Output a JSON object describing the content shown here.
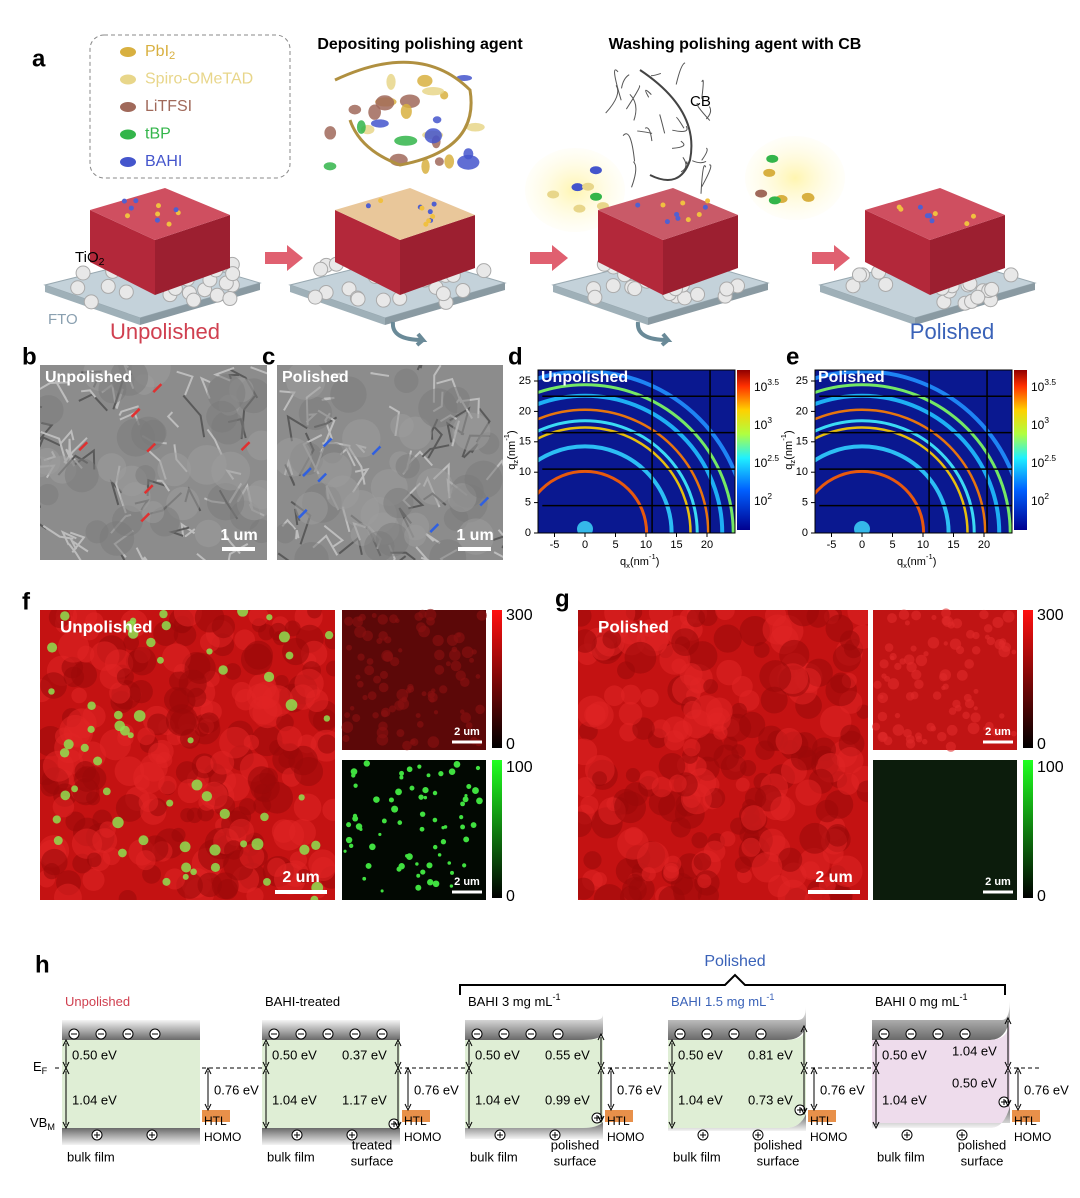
{
  "panel_a": {
    "label": "a",
    "legend": [
      {
        "text": "PbI",
        "sub": "2"
      },
      {
        "text": "Spiro-OMeTAD"
      },
      {
        "text": "LiTFSI"
      },
      {
        "text": "tBP"
      },
      {
        "text": "BAHI"
      }
    ],
    "step1": "Depositing polishing agent",
    "step2": "Washing polishing agent with CB",
    "cb": "CB",
    "tio2": {
      "main": "TiO",
      "sub": "2"
    },
    "fto": "FTO",
    "unpolished": "Unpolished",
    "polished": "Polished"
  },
  "panel_b": {
    "label": "b",
    "title": "Unpolished",
    "scale": "1 um"
  },
  "panel_c": {
    "label": "c",
    "title": "Polished",
    "scale": "1 um"
  },
  "panel_d": {
    "label": "d",
    "title": "Unpolished",
    "xlabel": [
      "q",
      "x",
      "(nm",
      "-1",
      ")"
    ],
    "ylabel": [
      "q",
      "z",
      "(nm",
      "-1",
      ")"
    ],
    "xticks": [
      "-5",
      "0",
      "5",
      "10",
      "15",
      "20"
    ],
    "yticks": [
      "0",
      "5",
      "10",
      "15",
      "20",
      "25"
    ],
    "colorbar": [
      {
        "base": "10",
        "exp": "3.5"
      },
      {
        "base": "10",
        "exp": "3"
      },
      {
        "base": "10",
        "exp": "2.5"
      },
      {
        "base": "10",
        "exp": "2"
      }
    ]
  },
  "panel_e": {
    "label": "e",
    "title": "Polished",
    "xlabel": [
      "q",
      "x",
      "(nm",
      "-1",
      ")"
    ],
    "ylabel": [
      "q",
      "z",
      "(nm",
      "-1",
      ")"
    ],
    "xticks": [
      "-5",
      "0",
      "5",
      "10",
      "15",
      "20"
    ],
    "yticks": [
      "0",
      "5",
      "10",
      "15",
      "20",
      "25"
    ],
    "colorbar": [
      {
        "base": "10",
        "exp": "3.5"
      },
      {
        "base": "10",
        "exp": "3"
      },
      {
        "base": "10",
        "exp": "2.5"
      },
      {
        "base": "10",
        "exp": "2"
      }
    ]
  },
  "panel_f": {
    "label": "f",
    "title": "Unpolished",
    "scale_main": "2 um",
    "scale_small1": "2 um",
    "scale_small2": "2 um",
    "cbar_red": [
      "300",
      "0"
    ],
    "cbar_green": [
      "100",
      "0"
    ]
  },
  "panel_g": {
    "label": "g",
    "title": "Polished",
    "scale_main": "2 um",
    "scale_small1": "2 um",
    "scale_small2": "2 um",
    "cbar_red": [
      "300",
      "0"
    ],
    "cbar_green": [
      "100",
      "0"
    ]
  },
  "panel_h": {
    "label": "h",
    "bracket": "Polished",
    "ef": [
      "E",
      "F"
    ],
    "vbm": [
      "VB",
      "M"
    ],
    "htl": [
      "HTL",
      "HOMO"
    ],
    "columns": [
      {
        "title": {
          "text": "Unpolished"
        },
        "bulk_top": "0.50 eV",
        "bulk_gap": "1.04 eV",
        "htl_gap": "0.76 eV",
        "bottom": [
          "bulk film"
        ]
      },
      {
        "title": {
          "text": "BAHI-treated"
        },
        "bulk_top": "0.50 eV",
        "bulk_gap": "1.04 eV",
        "surface_top": "0.37 eV",
        "surface_gap": "1.17 eV",
        "htl_gap": "0.76 eV",
        "bottom": [
          "bulk film",
          "treated",
          "surface"
        ]
      },
      {
        "title": {
          "text": "BAHI  3 mg  mL",
          "sup": "-1"
        },
        "bulk_top": "0.50 eV",
        "bulk_gap": "1.04 eV",
        "surface_top": "0.55 eV",
        "surface_gap": "0.99 eV",
        "htl_gap": "0.76 eV",
        "bottom": [
          "bulk film",
          "polished",
          "surface"
        ]
      },
      {
        "title": {
          "text": "BAHI  1.5 mg  mL",
          "sup": "-1"
        },
        "bulk_top": "0.50 eV",
        "bulk_gap": "1.04 eV",
        "surface_top": "0.81 eV",
        "surface_gap": "0.73 eV",
        "htl_gap": "0.76 eV",
        "bottom": [
          "bulk film",
          "polished",
          "surface"
        ]
      },
      {
        "title": {
          "text": "BAHI  0 mg  mL",
          "sup": "-1"
        },
        "bulk_top": "0.50 eV",
        "bulk_gap": "1.04 eV",
        "surface_top": "1.04 eV",
        "surface_gap": "0.50 eV",
        "htl_gap": "0.76 eV",
        "bottom": [
          "bulk film",
          "polished",
          "surface"
        ]
      }
    ]
  }
}
